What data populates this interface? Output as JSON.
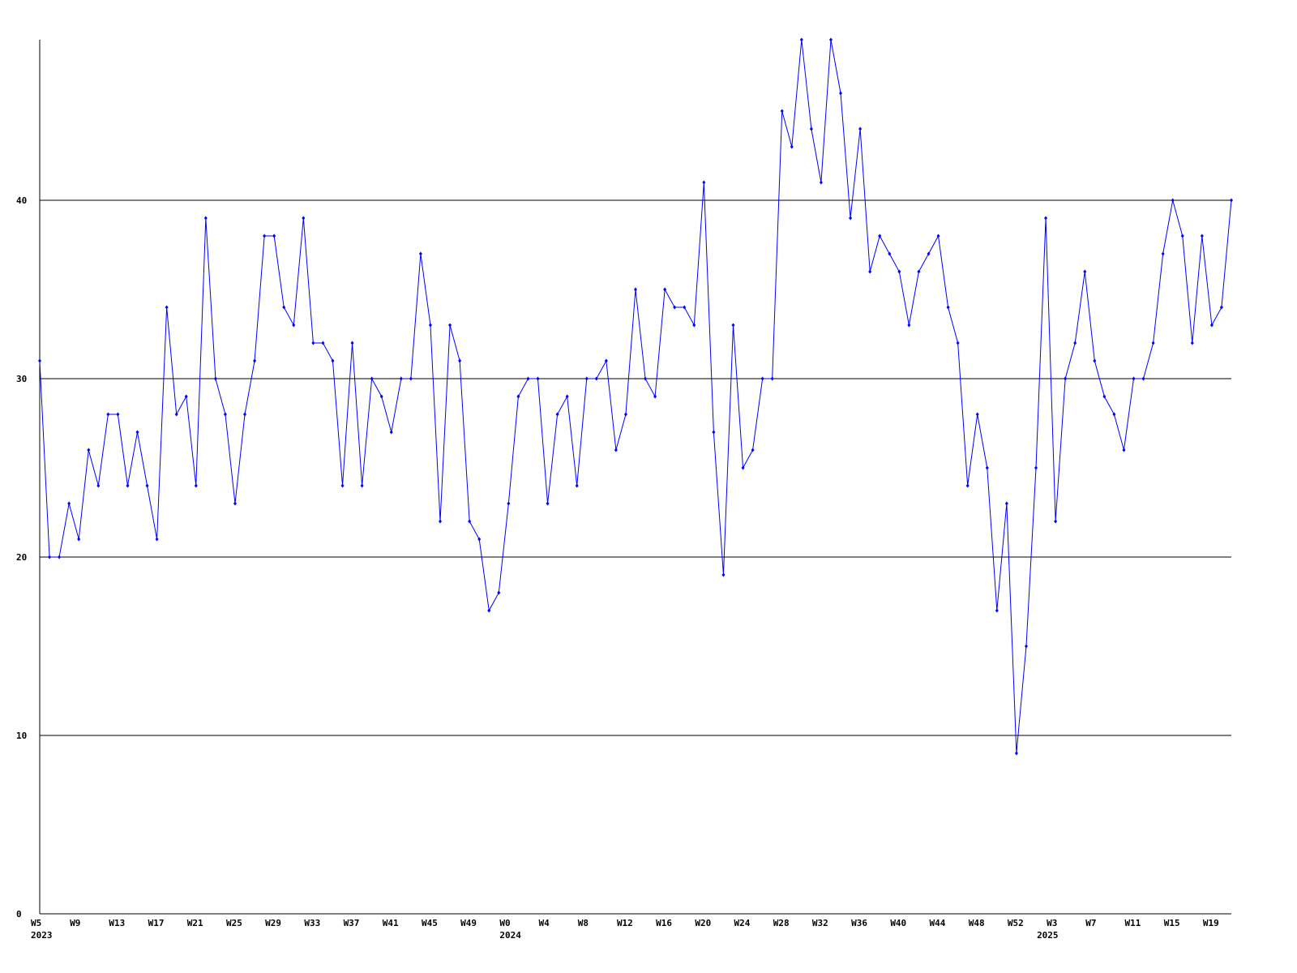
{
  "chart_data": {
    "type": "line",
    "categories": [
      "W5",
      null,
      null,
      null,
      "W9",
      null,
      null,
      null,
      "W13",
      null,
      null,
      null,
      "W17",
      null,
      null,
      null,
      "W21",
      null,
      null,
      null,
      "W25",
      null,
      null,
      null,
      "W29",
      null,
      null,
      null,
      "W33",
      null,
      null,
      null,
      "W37",
      null,
      null,
      null,
      "W41",
      null,
      null,
      null,
      "W45",
      null,
      null,
      null,
      "W49",
      null,
      null,
      null,
      "W0",
      null,
      null,
      null,
      "W4",
      null,
      null,
      null,
      "W8",
      null,
      null,
      null,
      "W12",
      null,
      null,
      null,
      "W16",
      null,
      null,
      null,
      "W20",
      null,
      null,
      null,
      "W24",
      null,
      null,
      null,
      "W28",
      null,
      null,
      null,
      "W32",
      null,
      null,
      null,
      "W36",
      null,
      null,
      null,
      "W40",
      null,
      null,
      null,
      "W44",
      null,
      null,
      null,
      "W48",
      null,
      null,
      null,
      "W52",
      null,
      null,
      null,
      "W3",
      null,
      null,
      null,
      "W7",
      null,
      null,
      null,
      "W11",
      null,
      null,
      null,
      "W15",
      null,
      null,
      null,
      "W19",
      null,
      null
    ],
    "years": [
      "2023",
      null,
      null,
      null,
      null,
      null,
      null,
      null,
      null,
      null,
      null,
      null,
      null,
      null,
      null,
      null,
      null,
      null,
      null,
      null,
      null,
      null,
      null,
      null,
      null,
      null,
      null,
      null,
      null,
      null,
      null,
      null,
      null,
      null,
      null,
      null,
      null,
      null,
      null,
      null,
      null,
      null,
      null,
      null,
      null,
      null,
      null,
      null,
      "2024",
      null,
      null,
      null,
      null,
      null,
      null,
      null,
      null,
      null,
      null,
      null,
      null,
      null,
      null,
      null,
      null,
      null,
      null,
      null,
      null,
      null,
      null,
      null,
      null,
      null,
      null,
      null,
      null,
      null,
      null,
      null,
      null,
      null,
      null,
      null,
      null,
      null,
      null,
      null,
      null,
      null,
      null,
      null,
      null,
      null,
      null,
      null,
      null,
      null,
      null,
      null,
      null,
      null,
      null,
      "2025",
      null,
      null,
      null,
      null,
      null,
      null,
      null,
      null,
      null,
      null,
      null,
      null,
      null,
      null,
      null,
      null,
      null,
      null,
      null,
      null,
      null
    ],
    "series": [
      {
        "color": "#0000ff",
        "values": [
          31,
          20,
          20,
          23,
          21,
          26,
          24,
          28,
          28,
          24,
          27,
          24,
          21,
          34,
          28,
          29,
          24,
          39,
          30,
          28,
          23,
          28,
          31,
          38,
          38,
          34,
          33,
          39,
          32,
          32,
          31,
          24,
          32,
          24,
          30,
          29,
          27,
          30,
          30,
          37,
          33,
          22,
          33,
          31,
          22,
          21,
          17,
          18,
          23,
          29,
          30,
          30,
          23,
          28,
          29,
          24,
          30,
          30,
          31,
          26,
          28,
          35,
          30,
          29,
          35,
          34,
          34,
          33,
          41,
          27,
          19,
          33,
          25,
          26,
          30,
          30,
          45,
          43,
          49,
          44,
          41,
          49,
          46,
          39,
          44,
          36,
          38,
          37,
          36,
          33,
          36,
          37,
          38,
          34,
          32,
          24,
          28,
          25,
          17,
          23,
          9,
          15,
          25,
          39,
          22,
          30,
          32,
          36,
          31,
          29,
          28,
          26,
          30,
          30,
          32,
          37,
          40,
          38,
          32,
          38,
          33,
          34,
          40
        ]
      }
    ],
    "ylim": [
      0,
      49
    ],
    "yticks": [
      0,
      10,
      20,
      30,
      40
    ],
    "grid": true
  }
}
